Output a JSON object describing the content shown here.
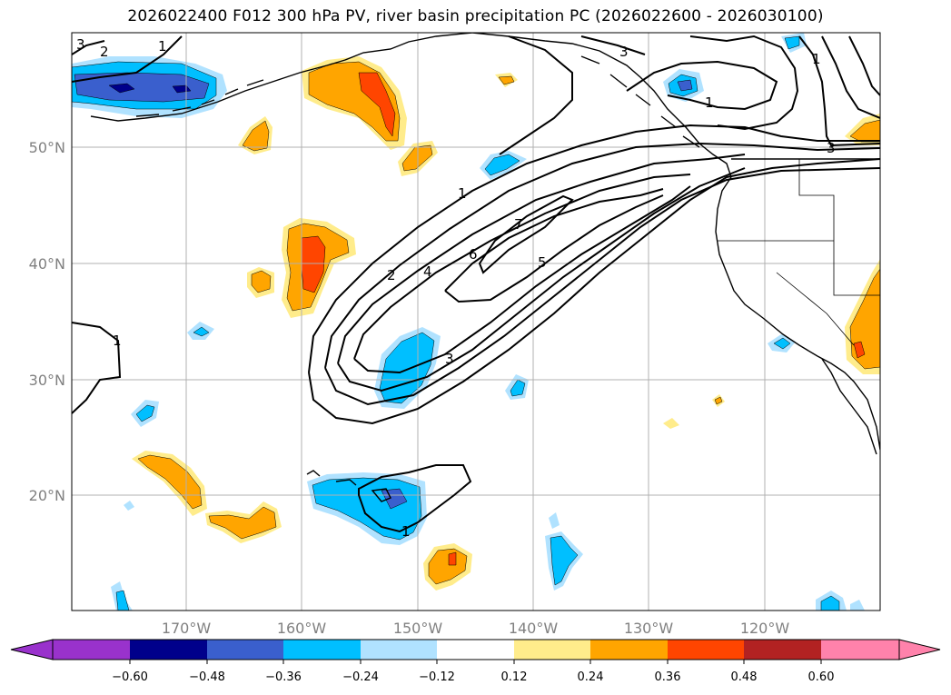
{
  "title": "2026022400 F012 300 hPa PV, river basin precipitation PC (2026022600 - 2026030100)",
  "lat_labels": [
    "50°N",
    "40°N",
    "30°N",
    "20°N"
  ],
  "lon_labels": [
    "170°W",
    "160°W",
    "150°W",
    "140°W",
    "130°W",
    "120°W"
  ],
  "contour_labels": [
    "3",
    "2",
    "1",
    "3",
    "1",
    "1",
    "3",
    "1",
    "2",
    "4",
    "6",
    "7",
    "5",
    "3",
    "1",
    "1"
  ],
  "colorbar": {
    "ticks": [
      "−0.60",
      "−0.48",
      "−0.36",
      "−0.24",
      "−0.12",
      "0.12",
      "0.24",
      "0.36",
      "0.48",
      "0.60"
    ],
    "colors": [
      "#9932cc",
      "#00008b",
      "#3a5fcd",
      "#00bfff",
      "#b0e2ff",
      "#ffffff",
      "#ffec8b",
      "#ffa500",
      "#ff4500",
      "#b22222",
      "#ff82ab"
    ]
  },
  "fill_colors": {
    "neg1": "#b0e2ff",
    "neg2": "#00bfff",
    "neg3": "#3a5fcd",
    "neg4": "#00008b",
    "pos1": "#ffec8b",
    "pos2": "#ffa500",
    "pos3": "#ff4500"
  }
}
